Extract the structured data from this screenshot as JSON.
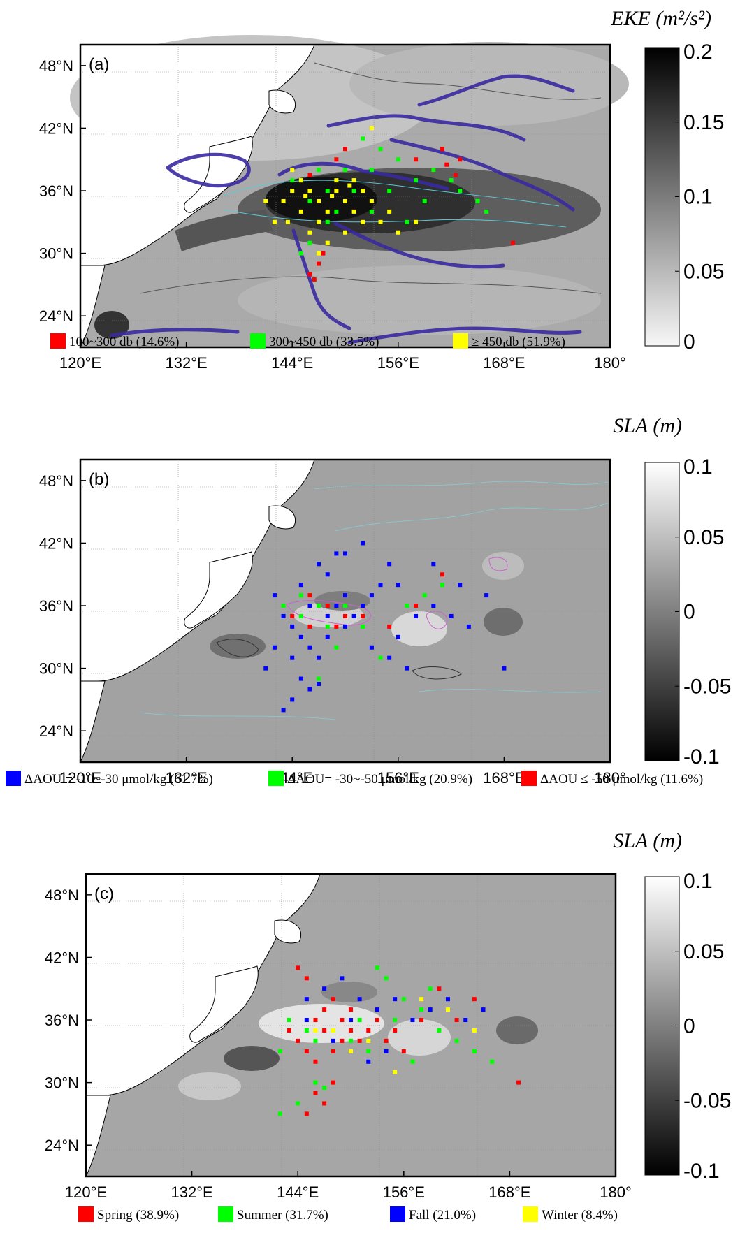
{
  "panels": [
    {
      "tag": "(a)",
      "colorbar": {
        "title": "EKE (m²/s²)",
        "ticks": [
          "0.2",
          "0.15",
          "0.1",
          "0.05",
          "0"
        ],
        "tick_values": [
          0.2,
          0.15,
          0.1,
          0.05,
          0
        ],
        "from_color": "#f7f7f7",
        "to_color": "#000000"
      },
      "legend": [
        {
          "label": "100~300 db (14.6%)",
          "color": "#ff0000"
        },
        {
          "label": "300~450 db (33.5%)",
          "color": "#00ff00"
        },
        {
          "label": "≥ 450 db (51.9%)",
          "color": "#ffff00"
        }
      ]
    },
    {
      "tag": "(b)",
      "colorbar": {
        "title": "SLA (m)",
        "ticks": [
          "0.1",
          "0.05",
          "0",
          "-0.05",
          "-0.1"
        ],
        "tick_values": [
          0.1,
          0.05,
          0,
          -0.05,
          -0.1
        ],
        "from_color": "#000000",
        "to_color": "#ffffff"
      },
      "legend": [
        {
          "label": "ΔAOU = -10~-30 μmol/kg (61.7%)",
          "color": "#0000ff"
        },
        {
          "label": "ΔAOU= -30~-50 μmol/kg (20.9%)",
          "color": "#00ff00"
        },
        {
          "label": "ΔAOU ≤ -50 μmol/kg (11.6%)",
          "color": "#ff0000"
        }
      ]
    },
    {
      "tag": "(c)",
      "colorbar": {
        "title": "SLA (m)",
        "ticks": [
          "0.1",
          "0.05",
          "0",
          "-0.05",
          "-0.1"
        ],
        "tick_values": [
          0.1,
          0.05,
          0,
          -0.05,
          -0.1
        ],
        "from_color": "#000000",
        "to_color": "#ffffff"
      },
      "legend": [
        {
          "label": "Spring (38.9%)",
          "color": "#ff0000"
        },
        {
          "label": "Summer (31.7%)",
          "color": "#00ff00"
        },
        {
          "label": "Fall (21.0%)",
          "color": "#0000ff"
        },
        {
          "label": "Winter (8.4%)",
          "color": "#ffff00"
        }
      ]
    }
  ],
  "chart_data": [
    {
      "type": "scatter",
      "panel": "(a)",
      "x_ticks": [
        "120°E",
        "132°E",
        "144°E",
        "156°E",
        "168°E",
        "180°"
      ],
      "x_tick_values": [
        120,
        132,
        144,
        156,
        168,
        180
      ],
      "y_ticks": [
        "48°N",
        "42°N",
        "36°N",
        "30°N",
        "24°N"
      ],
      "y_tick_values": [
        48,
        42,
        36,
        30,
        24
      ],
      "xlim": [
        120,
        180
      ],
      "ylim": [
        21,
        50
      ],
      "grid": true,
      "background": "EKE field",
      "series": [
        {
          "name": "100~300 db (14.6%)",
          "color": "#ff0000",
          "points": [
            [
              146,
              28
            ],
            [
              147,
              29
            ],
            [
              146.5,
              27.5
            ],
            [
              147.5,
              30
            ],
            [
              158,
              39
            ],
            [
              161,
              40
            ],
            [
              163,
              39
            ],
            [
              162.5,
              37.5
            ],
            [
              149,
              39
            ],
            [
              150,
              40
            ],
            [
              169,
              31
            ],
            [
              146,
              37.5
            ],
            [
              160,
              38
            ],
            [
              161.5,
              38.5
            ]
          ]
        },
        {
          "name": "300~450 db (33.5%)",
          "color": "#00ff00",
          "points": [
            [
              144,
              37
            ],
            [
              146,
              35
            ],
            [
              148,
              36
            ],
            [
              150,
              38
            ],
            [
              152,
              41
            ],
            [
              154,
              40
            ],
            [
              156,
              39
            ],
            [
              158,
              37
            ],
            [
              160,
              38
            ],
            [
              162,
              37
            ],
            [
              165,
              35
            ],
            [
              146,
              31
            ],
            [
              148,
              33
            ],
            [
              151,
              36
            ],
            [
              153,
              34
            ],
            [
              155,
              36
            ],
            [
              157,
              33
            ],
            [
              159,
              35
            ],
            [
              147,
              38
            ],
            [
              153,
              38
            ],
            [
              163,
              36
            ],
            [
              166,
              34
            ],
            [
              145,
              30
            ],
            [
              149,
              34
            ]
          ]
        },
        {
          "name": "≥ 450 db (51.9%)",
          "color": "#ffff00",
          "points": [
            [
              143,
              35
            ],
            [
              144,
              36
            ],
            [
              145,
              34
            ],
            [
              146,
              36
            ],
            [
              147,
              35
            ],
            [
              148,
              34
            ],
            [
              149,
              36
            ],
            [
              150,
              35
            ],
            [
              151,
              34
            ],
            [
              152,
              36
            ],
            [
              153,
              35
            ],
            [
              154,
              33
            ],
            [
              143.5,
              33
            ],
            [
              145,
              37
            ],
            [
              147,
              33
            ],
            [
              149,
              37
            ],
            [
              151,
              37
            ],
            [
              155,
              34
            ],
            [
              146,
              32
            ],
            [
              148,
              31
            ],
            [
              156,
              32
            ],
            [
              141,
              35
            ],
            [
              142,
              33
            ],
            [
              150,
              32
            ],
            [
              153,
              42
            ],
            [
              144,
              38
            ],
            [
              152,
              33
            ],
            [
              147,
              30
            ],
            [
              158,
              33
            ],
            [
              145.5,
              35.5
            ],
            [
              148.5,
              35.5
            ],
            [
              150.5,
              36.5
            ]
          ]
        }
      ]
    },
    {
      "type": "scatter",
      "panel": "(b)",
      "x_ticks": [
        "120°E",
        "132°E",
        "144°E",
        "156°E",
        "168°E",
        "180°"
      ],
      "x_tick_values": [
        120,
        132,
        144,
        156,
        168,
        180
      ],
      "y_ticks": [
        "48°N",
        "42°N",
        "36°N",
        "30°N",
        "24°N"
      ],
      "y_tick_values": [
        48,
        42,
        36,
        30,
        24
      ],
      "xlim": [
        120,
        180
      ],
      "ylim": [
        21,
        50
      ],
      "grid": true,
      "background": "SLA field",
      "series": [
        {
          "name": "ΔAOU = -10~-30 μmol/kg (61.7%)",
          "color": "#0000ff",
          "points": [
            [
              142,
              37
            ],
            [
              143,
              35
            ],
            [
              144,
              34
            ],
            [
              145,
              33
            ],
            [
              146,
              32
            ],
            [
              147,
              31
            ],
            [
              145,
              29
            ],
            [
              146,
              28
            ],
            [
              147,
              28.5
            ],
            [
              144,
              27
            ],
            [
              143,
              26
            ],
            [
              148,
              35
            ],
            [
              149,
              36
            ],
            [
              150,
              34
            ],
            [
              151,
              35
            ],
            [
              152,
              36
            ],
            [
              153,
              37
            ],
            [
              154,
              38
            ],
            [
              155,
              40
            ],
            [
              152,
              42
            ],
            [
              150,
              41
            ],
            [
              148,
              39
            ],
            [
              156,
              33
            ],
            [
              158,
              35
            ],
            [
              160,
              36
            ],
            [
              162,
              35
            ],
            [
              164,
              34
            ],
            [
              166,
              37
            ],
            [
              168,
              30
            ],
            [
              145,
              38
            ],
            [
              147,
              40
            ],
            [
              149,
              41
            ],
            [
              153,
              32
            ],
            [
              155,
              31
            ],
            [
              157,
              30
            ],
            [
              146,
              36
            ],
            [
              148,
              33
            ],
            [
              150,
              37
            ],
            [
              156,
              38
            ],
            [
              160,
              40
            ],
            [
              163,
              38
            ],
            [
              144,
              31
            ],
            [
              142,
              32
            ],
            [
              141,
              30
            ]
          ]
        },
        {
          "name": "ΔAOU= -30~-50 μmol/kg (20.9%)",
          "color": "#00ff00",
          "points": [
            [
              143,
              36
            ],
            [
              145,
              35
            ],
            [
              147,
              29
            ],
            [
              148,
              34
            ],
            [
              150,
              36
            ],
            [
              152,
              34
            ],
            [
              154,
              31
            ],
            [
              157,
              36
            ],
            [
              159,
              37
            ],
            [
              161,
              38
            ],
            [
              145,
              37
            ],
            [
              149,
              32
            ],
            [
              147,
              36
            ]
          ]
        },
        {
          "name": "ΔAOU ≤ -50 μmol/kg (11.6%)",
          "color": "#ff0000",
          "points": [
            [
              144,
              35
            ],
            [
              146,
              34
            ],
            [
              148,
              36
            ],
            [
              150,
              35
            ],
            [
              152,
              35
            ],
            [
              155,
              34
            ],
            [
              158,
              36
            ],
            [
              161,
              39
            ],
            [
              146,
              37
            ],
            [
              149,
              34
            ]
          ]
        }
      ]
    },
    {
      "type": "scatter",
      "panel": "(c)",
      "x_ticks": [
        "120°E",
        "132°E",
        "144°E",
        "156°E",
        "168°E",
        "180°"
      ],
      "x_tick_values": [
        120,
        132,
        144,
        156,
        168,
        180
      ],
      "y_ticks": [
        "48°N",
        "42°N",
        "36°N",
        "30°N",
        "24°N"
      ],
      "y_tick_values": [
        48,
        42,
        36,
        30,
        24
      ],
      "xlim": [
        120,
        180
      ],
      "ylim": [
        21,
        50
      ],
      "grid": true,
      "background": "SLA field",
      "series": [
        {
          "name": "Spring (38.9%)",
          "color": "#ff0000",
          "points": [
            [
              143,
              35
            ],
            [
              144,
              34
            ],
            [
              145,
              33
            ],
            [
              146,
              36
            ],
            [
              147,
              37
            ],
            [
              148,
              38
            ],
            [
              149,
              36
            ],
            [
              150,
              35
            ],
            [
              151,
              34
            ],
            [
              144,
              41
            ],
            [
              145,
              40
            ],
            [
              146,
              29
            ],
            [
              147,
              28
            ],
            [
              145,
              27
            ],
            [
              148,
              30
            ],
            [
              152,
              35
            ],
            [
              154,
              34
            ],
            [
              156,
              33
            ],
            [
              158,
              36
            ],
            [
              160,
              39
            ],
            [
              162,
              36
            ],
            [
              164,
              38
            ],
            [
              169,
              30
            ],
            [
              146,
              32
            ],
            [
              148,
              33
            ],
            [
              150,
              37
            ],
            [
              153,
              36
            ],
            [
              155,
              35
            ],
            [
              147,
              35
            ],
            [
              149,
              34
            ]
          ]
        },
        {
          "name": "Summer (31.7%)",
          "color": "#00ff00",
          "points": [
            [
              142,
              33
            ],
            [
              143,
              36
            ],
            [
              145,
              35
            ],
            [
              146,
              34
            ],
            [
              148,
              35
            ],
            [
              150,
              34
            ],
            [
              152,
              33
            ],
            [
              153,
              41
            ],
            [
              154,
              40
            ],
            [
              156,
              38
            ],
            [
              158,
              37
            ],
            [
              160,
              35
            ],
            [
              162,
              34
            ],
            [
              164,
              33
            ],
            [
              166,
              32
            ],
            [
              146,
              30
            ],
            [
              147,
              29.5
            ],
            [
              144,
              28
            ],
            [
              142,
              27
            ],
            [
              151,
              36
            ],
            [
              155,
              36
            ],
            [
              157,
              32
            ],
            [
              159,
              39
            ]
          ]
        },
        {
          "name": "Fall (21.0%)",
          "color": "#0000ff",
          "points": [
            [
              145,
              38
            ],
            [
              147,
              39
            ],
            [
              149,
              40
            ],
            [
              151,
              38
            ],
            [
              153,
              37
            ],
            [
              155,
              38
            ],
            [
              157,
              36
            ],
            [
              159,
              37
            ],
            [
              161,
              38
            ],
            [
              163,
              36
            ],
            [
              165,
              37
            ],
            [
              148,
              34
            ],
            [
              150,
              36
            ],
            [
              152,
              32
            ],
            [
              154,
              33
            ],
            [
              145,
              36
            ]
          ]
        },
        {
          "name": "Winter (8.4%)",
          "color": "#ffff00",
          "points": [
            [
              146,
              35
            ],
            [
              148,
              35
            ],
            [
              150,
              33
            ],
            [
              152,
              34
            ],
            [
              155,
              31
            ],
            [
              158,
              38
            ],
            [
              161,
              37
            ],
            [
              164,
              35
            ]
          ]
        }
      ]
    }
  ]
}
